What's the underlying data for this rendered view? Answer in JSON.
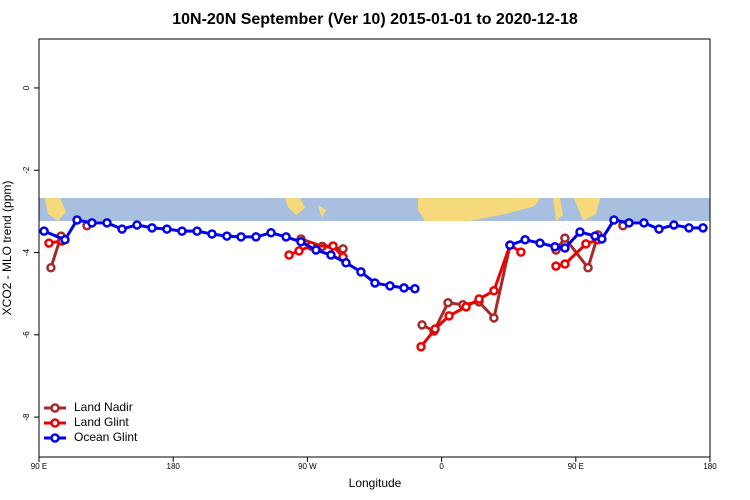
{
  "chart_data": {
    "type": "line",
    "title": "10N-20N September (Ver 10)   2015-01-01 to 2020-12-18",
    "x_label": "Longitude",
    "y_label": "XCO2 - MLO trend (ppm)",
    "xlim": [
      90,
      540
    ],
    "xticks": [
      {
        "value": 90,
        "label": "90 E"
      },
      180,
      {
        "value": 270,
        "label": "90 W"
      },
      {
        "value": 360,
        "label": "0"
      },
      {
        "value": 450,
        "label": "90 E"
      },
      {
        "value": 540,
        "label": "180"
      }
    ],
    "ylim": [
      -8.97,
      1.19
    ],
    "yticks": [
      0,
      -2,
      -4,
      -6,
      -8
    ],
    "legend": "bottom-left",
    "series": [
      {
        "name": "Land Nadir",
        "color": "#a52a2a",
        "x": [
          98,
          104.8,
          113,
          122.2,
          200,
          265.7,
          280,
          293.9,
          320,
          346.9,
          354.9,
          364.3,
          374.3,
          385.1,
          395.1,
          405.9,
          420,
          436.7,
          442.7,
          458.2,
          464.9,
          473,
          481.6
        ],
        "values": [
          -4.37,
          -3.6,
          null,
          -3.35,
          null,
          -3.67,
          -3.85,
          -3.91,
          null,
          -5.76,
          -5.91,
          -5.22,
          -5.27,
          -5.2,
          -5.59,
          -3.82,
          null,
          -3.94,
          -3.65,
          -4.37,
          -3.57,
          null,
          -3.35
        ]
      },
      {
        "name": "Land Glint",
        "color": "#ee0000",
        "x": [
          96.7,
          105.4,
          200,
          257.7,
          264.4,
          272.4,
          287.2,
          293.9,
          320,
          346.2,
          355.6,
          365,
          376.4,
          385.1,
          395.1,
          405.9,
          413.2,
          425,
          436.7,
          442.7,
          456.8,
          464.9
        ],
        "values": [
          -3.77,
          -3.72,
          null,
          -4.06,
          -3.96,
          -3.84,
          -3.84,
          -4.11,
          null,
          -6.29,
          -5.86,
          -5.54,
          -5.32,
          -5.13,
          -4.93,
          -3.82,
          -3.99,
          null,
          -4.33,
          -4.28,
          -3.79,
          -3.69
        ]
      },
      {
        "name": "Ocean Glint",
        "color": "#0000ee",
        "x": [
          93.4,
          107.4,
          115.5,
          125.5,
          135.6,
          145.7,
          155.7,
          165.8,
          175.8,
          185.9,
          196,
          206,
          216,
          225.5,
          235.5,
          245.6,
          255.7,
          265.7,
          275.8,
          285.8,
          295.9,
          305.9,
          315.3,
          325.4,
          334.8,
          342.1,
          375,
          405.9,
          416,
          426,
          436,
          442.7,
          452.8,
          462.9,
          467.5,
          475.6,
          485.7,
          495.7,
          505.8,
          515.8,
          525.9,
          535.3
        ],
        "values": [
          -3.48,
          -3.69,
          -3.21,
          -3.28,
          -3.28,
          -3.43,
          -3.33,
          -3.4,
          -3.43,
          -3.48,
          -3.48,
          -3.55,
          -3.6,
          -3.62,
          -3.62,
          -3.52,
          -3.62,
          -3.74,
          -3.94,
          -4.06,
          -4.25,
          -4.47,
          -4.74,
          -4.81,
          -4.86,
          -4.88,
          null,
          -3.82,
          -3.69,
          -3.77,
          -3.86,
          -3.89,
          -3.5,
          -3.6,
          -3.67,
          -3.21,
          -3.28,
          -3.28,
          -3.43,
          -3.33,
          -3.4,
          -3.4
        ]
      }
    ]
  }
}
